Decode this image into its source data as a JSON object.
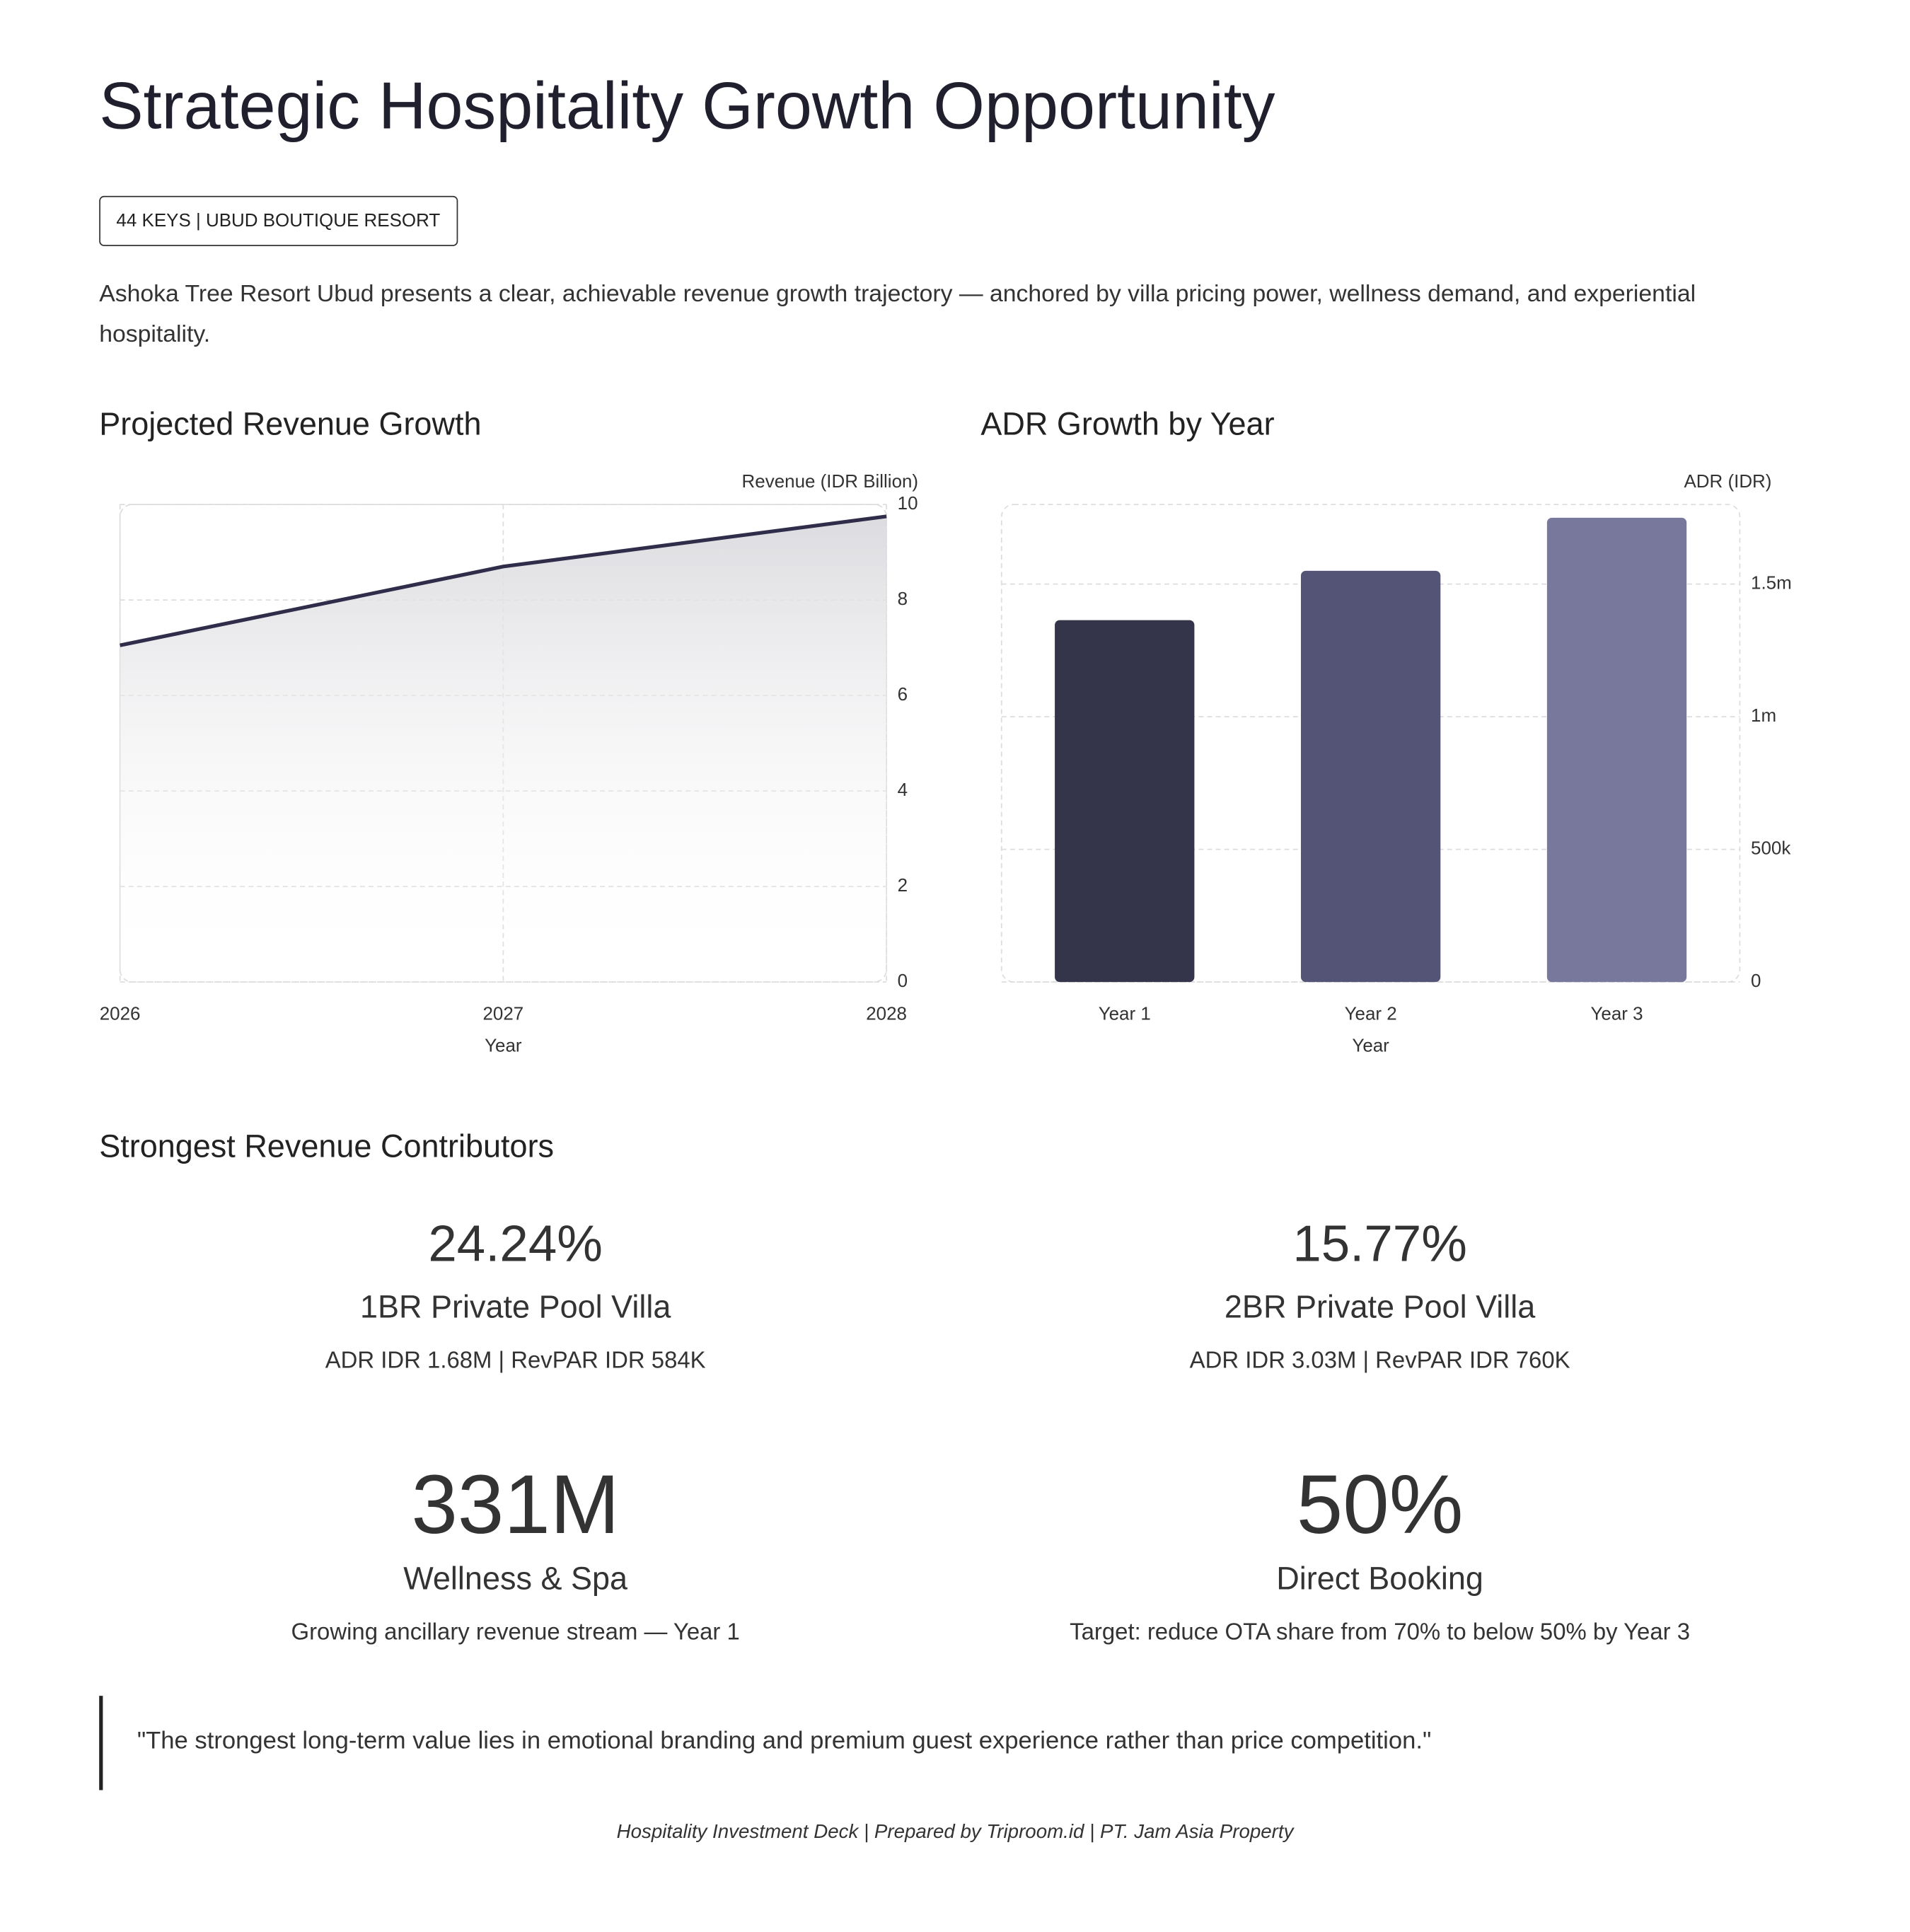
{
  "header": {
    "title": "Strategic Hospitality Growth Opportunity",
    "badge": "44 KEYS | UBUD BOUTIQUE RESORT",
    "intro": "Ashoka Tree Resort Ubud presents a clear, achievable revenue growth trajectory — anchored by villa pricing power, wellness demand, and experiential hospitality."
  },
  "chart_data": [
    {
      "type": "line",
      "title": "Projected Revenue Growth",
      "y_label": "Revenue (IDR Billion)",
      "x_label": "Year",
      "x": [
        2026,
        2027,
        2028
      ],
      "values": [
        7.05,
        8.7,
        9.75
      ],
      "color": "#2f2d4a",
      "xlim": [
        2026,
        2028
      ],
      "xticks": [
        2026,
        2027,
        2028
      ],
      "ylim": [
        0,
        10
      ],
      "yticks": [
        0,
        2,
        4,
        6,
        8,
        10
      ],
      "grid": true
    },
    {
      "type": "bar",
      "title": "ADR Growth by Year",
      "y_label": "ADR (IDR)",
      "x_label": "Year",
      "categories": [
        "Year 1",
        "Year 2",
        "Year 3"
      ],
      "values": [
        1364000,
        1550000,
        1750000
      ],
      "colors": [
        "#34344a",
        "#545476",
        "#78789c"
      ],
      "ylim": [
        0,
        1800000
      ],
      "yticks": [
        0,
        {
          "value": 500000,
          "label": "500k"
        },
        {
          "value": 1000000,
          "label": "1m"
        },
        {
          "value": 1500000,
          "label": "1.5m"
        }
      ],
      "grid": true
    }
  ],
  "contributors": {
    "title": "Strongest Revenue Contributors",
    "items": [
      {
        "value": "24.24%",
        "name": "1BR Private Pool Villa",
        "detail": "ADR IDR 1.68M | RevPAR IDR 584K"
      },
      {
        "value": "15.77%",
        "name": "2BR Private Pool Villa",
        "detail": "ADR IDR 3.03M | RevPAR IDR 760K"
      },
      {
        "value": "331M",
        "name": "Wellness & Spa",
        "detail": "Growing ancillary revenue stream — Year 1"
      },
      {
        "value": "50%",
        "name": "Direct Booking",
        "detail": "Target: reduce OTA share from 70% to below 50% by Year 3"
      }
    ]
  },
  "quote": "\"The strongest long-term value lies in emotional branding and premium guest experience rather than price competition.\"",
  "footer": "Hospitality Investment Deck | Prepared by Triproom.id | PT. Jam Asia Property"
}
